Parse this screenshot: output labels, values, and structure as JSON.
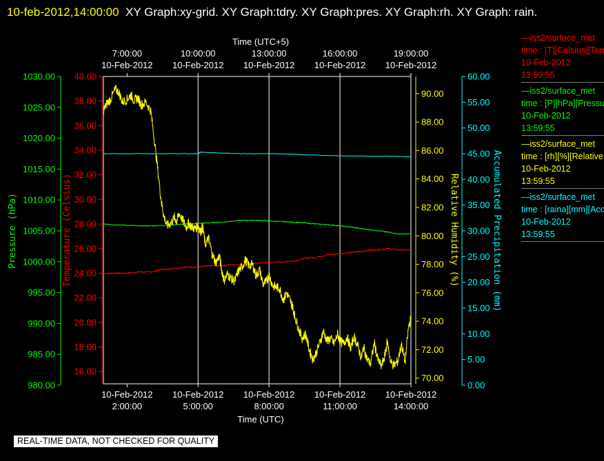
{
  "header": {
    "timestamp": "10-feb-2012,14:00:00",
    "graphs": "XY Graph:xy-grid.  XY Graph:tdry.  XY Graph:pres.  XY Graph:rh.  XY Graph: rain."
  },
  "footer_note": "REAL-TIME DATA, NOT CHECKED FOR QUALITY",
  "colors": {
    "temperature": "#ff0000",
    "pressure": "#00ff00",
    "humidity": "#ffff00",
    "precipitation": "#00ffff",
    "grid": "#ffffff"
  },
  "legend": [
    {
      "line": "—iss2/surface_met",
      "var": "time : [T][Celsius][Temperature]",
      "date": "10-Feb-2012",
      "time": "13:59:55",
      "color": "#ff0000"
    },
    {
      "line": "—iss2/surface_met",
      "var": "time : [P][hPa][Pressure]",
      "date": "10-Feb-2012",
      "time": "13:59:55",
      "color": "#00ff00"
    },
    {
      "line": "—iss2/surface_met",
      "var": "time : [rh][%][Relative Humidity]",
      "date": "10-Feb-2012",
      "time": "13:59:55",
      "color": "#ffff00"
    },
    {
      "line": "—iss2/surface_met",
      "var": "time : [raina][mm][Accumulated Precipitation]",
      "date": "10-Feb-2012",
      "time": "13:59:55",
      "color": "#00ffff"
    }
  ],
  "chart_data": {
    "type": "line",
    "x_label_bottom": "Time (UTC)",
    "x_label_top": "Time (UTC+5)",
    "x_range_hours_utc": [
      1.0,
      14.0
    ],
    "bottom_ticks": [
      {
        "hour": 2,
        "date": "10-Feb-2012",
        "time": "2:00:00"
      },
      {
        "hour": 5,
        "date": "10-Feb-2012",
        "time": "5:00:00"
      },
      {
        "hour": 8,
        "date": "10-Feb-2012",
        "time": "8:00:00"
      },
      {
        "hour": 11,
        "date": "10-Feb-2012",
        "time": "11:00:00"
      },
      {
        "hour": 14,
        "date": "10-Feb-2012",
        "time": "14:00:00"
      }
    ],
    "top_ticks": [
      {
        "hour": 2,
        "time": "7:00:00",
        "date": "10-Feb-2012"
      },
      {
        "hour": 5,
        "time": "10:00:00",
        "date": "10-Feb-2012"
      },
      {
        "hour": 8,
        "time": "13:00:00",
        "date": "10-Feb-2012"
      },
      {
        "hour": 11,
        "time": "16:00:00",
        "date": "10-Feb-2012"
      },
      {
        "hour": 14,
        "time": "19:00:00",
        "date": "10-Feb-2012"
      }
    ],
    "grid_lines_hours": [
      5,
      8,
      11
    ],
    "axes": {
      "pressure": {
        "label": "Pressure (hPa)",
        "range": [
          980,
          1030
        ],
        "ticks": [
          980,
          985,
          990,
          995,
          1000,
          1005,
          1010,
          1015,
          1020,
          1025,
          1030
        ],
        "fmt": 2,
        "color": "#00ff00"
      },
      "temperature": {
        "label": "Temperature (Celsius)",
        "range": [
          15,
          40
        ],
        "ticks": [
          16,
          18,
          20,
          22,
          24,
          26,
          28,
          30,
          32,
          34,
          36,
          38,
          40
        ],
        "fmt": 2,
        "color": "#ff0000"
      },
      "humidity": {
        "label": "Relative Humidity (%)",
        "range": [
          69.6,
          91.2
        ],
        "ticks": [
          70,
          72,
          74,
          76,
          78,
          80,
          82,
          84,
          86,
          88,
          90
        ],
        "fmt": 2,
        "color": "#ffff00"
      },
      "precipitation": {
        "label": "Accumulated Precipitation (mm)",
        "range": [
          0,
          60
        ],
        "ticks": [
          0,
          5,
          10,
          15,
          20,
          25,
          30,
          35,
          40,
          45,
          50,
          55,
          60
        ],
        "fmt": 2,
        "color": "#00ffff"
      }
    },
    "series": [
      {
        "name": "Temperature",
        "axis": "temperature",
        "color": "#ff0000",
        "x": [
          1.0,
          1.5,
          2.0,
          2.5,
          3.0,
          3.5,
          4.0,
          4.5,
          5.0,
          5.5,
          6.0,
          6.5,
          7.0,
          7.5,
          8.0,
          8.5,
          9.0,
          9.5,
          10.0,
          10.5,
          11.0,
          11.5,
          12.0,
          12.5,
          13.0,
          13.5,
          14.0
        ],
        "y": [
          24.0,
          24.0,
          24.0,
          24.1,
          24.1,
          24.3,
          24.4,
          24.5,
          24.5,
          24.6,
          24.6,
          24.7,
          24.7,
          24.8,
          24.9,
          24.9,
          25.0,
          25.2,
          25.3,
          25.5,
          25.6,
          25.7,
          25.8,
          25.9,
          26.0,
          25.9,
          25.9
        ]
      },
      {
        "name": "Pressure",
        "axis": "pressure",
        "color": "#00ff00",
        "x": [
          1.0,
          1.5,
          2.0,
          2.5,
          3.0,
          3.5,
          4.0,
          4.5,
          5.0,
          5.5,
          6.0,
          6.5,
          7.0,
          7.5,
          8.0,
          8.5,
          9.0,
          9.5,
          10.0,
          10.5,
          11.0,
          11.5,
          12.0,
          12.5,
          13.0,
          13.5,
          14.0
        ],
        "y": [
          1006.1,
          1006.0,
          1005.9,
          1005.8,
          1005.8,
          1005.9,
          1006.0,
          1006.1,
          1006.2,
          1006.3,
          1006.4,
          1006.6,
          1006.7,
          1006.7,
          1006.6,
          1006.5,
          1006.4,
          1006.3,
          1006.1,
          1006.0,
          1005.8,
          1005.6,
          1005.3,
          1005.1,
          1004.8,
          1004.5,
          1004.5
        ]
      },
      {
        "name": "Relative Humidity",
        "axis": "humidity",
        "color": "#ffff00",
        "x": [
          1.0,
          1.15,
          1.3,
          1.5,
          1.65,
          1.8,
          2.0,
          2.15,
          2.3,
          2.45,
          2.6,
          2.8,
          3.0,
          3.15,
          3.3,
          3.45,
          3.55,
          3.7,
          3.85,
          4.0,
          4.1,
          4.2,
          4.35,
          4.5,
          4.6,
          4.75,
          4.9,
          5.0,
          5.1,
          5.2,
          5.3,
          5.45,
          5.6,
          5.75,
          5.9,
          6.0,
          6.1,
          6.25,
          6.4,
          6.55,
          6.7,
          6.85,
          7.0,
          7.15,
          7.3,
          7.45,
          7.6,
          7.75,
          7.9,
          8.0,
          8.15,
          8.3,
          8.45,
          8.6,
          8.75,
          8.9,
          9.0,
          9.1,
          9.25,
          9.4,
          9.55,
          9.7,
          9.85,
          10.0,
          10.15,
          10.3,
          10.45,
          10.6,
          10.75,
          10.9,
          11.0,
          11.15,
          11.3,
          11.45,
          11.6,
          11.75,
          11.9,
          12.0,
          12.15,
          12.3,
          12.45,
          12.6,
          12.75,
          12.9,
          13.0,
          13.15,
          13.3,
          13.45,
          13.6,
          13.75,
          13.9,
          14.0
        ],
        "y": [
          88.8,
          89.3,
          89.6,
          90.3,
          90.1,
          89.4,
          89.6,
          89.9,
          89.5,
          89.7,
          89.2,
          89.4,
          88.8,
          86.8,
          84.6,
          82.4,
          81.4,
          80.7,
          80.9,
          81.3,
          81.0,
          81.6,
          81.1,
          80.6,
          80.9,
          80.6,
          80.5,
          80.8,
          80.3,
          80.6,
          79.4,
          79.8,
          78.7,
          78.1,
          78.6,
          77.6,
          76.9,
          77.3,
          77.0,
          76.8,
          77.5,
          77.8,
          78.3,
          77.9,
          78.0,
          77.2,
          77.6,
          76.6,
          76.8,
          77.3,
          76.5,
          76.4,
          76.3,
          75.5,
          76.0,
          75.4,
          75.0,
          74.3,
          73.5,
          72.8,
          73.1,
          72.0,
          71.3,
          71.8,
          72.5,
          73.3,
          72.6,
          72.8,
          72.4,
          73.1,
          72.6,
          72.4,
          72.9,
          72.1,
          72.9,
          72.3,
          71.4,
          72.2,
          71.3,
          71.0,
          72.5,
          71.3,
          70.8,
          71.6,
          72.6,
          71.1,
          70.9,
          71.2,
          72.4,
          71.1,
          73.6,
          74.2
        ]
      },
      {
        "name": "Accumulated Precipitation",
        "axis": "precipitation",
        "color": "#00ffff",
        "x": [
          1.0,
          2.0,
          3.0,
          4.0,
          5.0,
          5.1,
          6.0,
          7.0,
          8.0,
          9.0,
          10.0,
          11.0,
          12.0,
          13.0,
          14.0
        ],
        "y": [
          45.0,
          45.0,
          45.0,
          45.0,
          45.0,
          45.3,
          45.1,
          45.0,
          45.0,
          44.9,
          44.7,
          44.6,
          44.5,
          44.5,
          44.4
        ]
      }
    ]
  }
}
